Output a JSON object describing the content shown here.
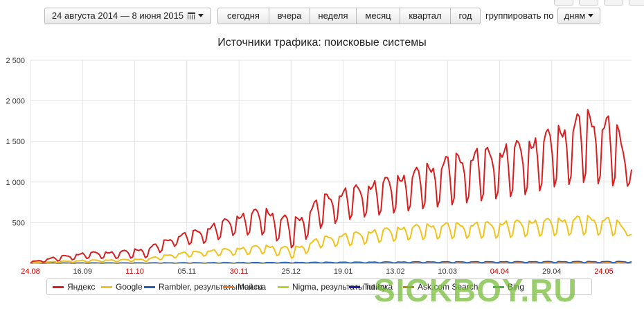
{
  "toolbar": {
    "date_range": "24 августа 2014 — 8 июня 2015",
    "periods": [
      "сегодня",
      "вчера",
      "неделя",
      "месяц",
      "квартал",
      "год"
    ],
    "group_by_label": "группировать по",
    "group_by_value": "дням"
  },
  "colors": {
    "yandex": "#d81e1e",
    "google": "#f2c21b",
    "rambler": "#1f5fb5",
    "mailru": "#f07a1e",
    "nigma": "#b7d41f",
    "tutby": "#1b1bb0",
    "ask": "#b8860b",
    "bing": "#3cb33c",
    "grid": "#e3e3e3",
    "watermark": "#78be3c"
  },
  "watermark": "SICKBOY.RU",
  "chart_data": {
    "type": "line",
    "title": "Источники трафика: поисковые системы",
    "xlabel": "",
    "ylabel": "",
    "ylim": [
      0,
      2500
    ],
    "yticks": [
      0,
      500,
      1000,
      1500,
      2000,
      2500
    ],
    "ytick_labels": [
      "",
      "500",
      "1 000",
      "1 500",
      "2 000",
      "2 500"
    ],
    "grid": true,
    "legend_position": "bottom",
    "x_start": "2014-08-24",
    "x_end": "2015-06-08",
    "xtick_labels": [
      {
        "label": "24.08",
        "weekend": true
      },
      {
        "label": "16.09",
        "weekend": false
      },
      {
        "label": "11.10",
        "weekend": true
      },
      {
        "label": "05.11",
        "weekend": false
      },
      {
        "label": "30.11",
        "weekend": true
      },
      {
        "label": "25.12",
        "weekend": false
      },
      {
        "label": "19.01",
        "weekend": false
      },
      {
        "label": "13.02",
        "weekend": false
      },
      {
        "label": "10.03",
        "weekend": false
      },
      {
        "label": "04.04",
        "weekend": true
      },
      {
        "label": "29.04",
        "weekend": false
      },
      {
        "label": "24.05",
        "weekend": true
      }
    ],
    "series": [
      {
        "name": "Яндекс",
        "key": "yandex",
        "x": [
          "2014-08-24",
          "2014-09-07",
          "2014-09-21",
          "2014-10-05",
          "2014-10-19",
          "2014-11-02",
          "2014-11-16",
          "2014-11-30",
          "2014-12-14",
          "2014-12-28",
          "2015-01-11",
          "2015-01-25",
          "2015-02-08",
          "2015-02-22",
          "2015-03-08",
          "2015-03-22",
          "2015-04-05",
          "2015-04-19",
          "2015-05-03",
          "2015-05-17",
          "2015-05-31",
          "2015-06-08"
        ],
        "high": [
          20,
          90,
          140,
          150,
          200,
          350,
          450,
          600,
          700,
          550,
          850,
          950,
          1050,
          1150,
          1300,
          1400,
          1450,
          1550,
          1700,
          1900,
          1800,
          1200
        ],
        "low": [
          0,
          30,
          60,
          60,
          70,
          220,
          250,
          350,
          350,
          180,
          450,
          550,
          600,
          650,
          700,
          750,
          800,
          850,
          950,
          1000,
          950,
          950
        ]
      },
      {
        "name": "Google",
        "key": "google",
        "x": [
          "2014-08-24",
          "2014-09-07",
          "2014-09-21",
          "2014-10-05",
          "2014-10-19",
          "2014-11-02",
          "2014-11-16",
          "2014-11-30",
          "2014-12-14",
          "2014-12-28",
          "2015-01-11",
          "2015-01-25",
          "2015-02-08",
          "2015-02-22",
          "2015-03-08",
          "2015-03-22",
          "2015-04-05",
          "2015-04-19",
          "2015-05-03",
          "2015-05-17",
          "2015-05-31",
          "2015-06-08"
        ],
        "high": [
          10,
          25,
          40,
          45,
          60,
          130,
          160,
          190,
          230,
          200,
          330,
          380,
          430,
          470,
          500,
          500,
          520,
          540,
          560,
          590,
          560,
          360
        ],
        "low": [
          0,
          10,
          15,
          20,
          25,
          70,
          90,
          100,
          120,
          60,
          200,
          220,
          260,
          290,
          300,
          310,
          310,
          330,
          340,
          350,
          340,
          340
        ]
      },
      {
        "name": "Rambler, результаты поиска",
        "key": "rambler",
        "x": [
          "2014-08-24",
          "2014-12-01",
          "2015-03-01",
          "2015-06-08"
        ],
        "high": [
          5,
          10,
          20,
          25
        ],
        "low": [
          0,
          3,
          8,
          10
        ]
      },
      {
        "name": "Mail.ru",
        "key": "mailru",
        "x": [
          "2014-08-24",
          "2014-12-01",
          "2015-03-01",
          "2015-06-08"
        ],
        "high": [
          3,
          8,
          15,
          18
        ],
        "low": [
          0,
          2,
          5,
          6
        ]
      },
      {
        "name": "Nigma, результаты поиска",
        "key": "nigma",
        "x": [
          "2014-08-24",
          "2014-12-01",
          "2015-03-01",
          "2015-06-08"
        ],
        "high": [
          2,
          4,
          6,
          6
        ],
        "low": [
          0,
          1,
          2,
          2
        ]
      },
      {
        "name": "Tut.by",
        "key": "tutby",
        "x": [
          "2014-08-24",
          "2014-12-01",
          "2015-03-01",
          "2015-06-08"
        ],
        "high": [
          2,
          4,
          8,
          10
        ],
        "low": [
          0,
          1,
          2,
          3
        ]
      },
      {
        "name": "Ask.com Search",
        "key": "ask",
        "x": [
          "2014-08-24",
          "2014-12-01",
          "2015-03-01",
          "2015-06-08"
        ],
        "high": [
          1,
          2,
          3,
          3
        ],
        "low": [
          0,
          0,
          1,
          1
        ]
      },
      {
        "name": "Bing",
        "key": "bing",
        "x": [
          "2014-08-24",
          "2014-12-01",
          "2015-03-01",
          "2015-06-08"
        ],
        "high": [
          2,
          5,
          10,
          12
        ],
        "low": [
          0,
          1,
          3,
          4
        ]
      }
    ]
  }
}
